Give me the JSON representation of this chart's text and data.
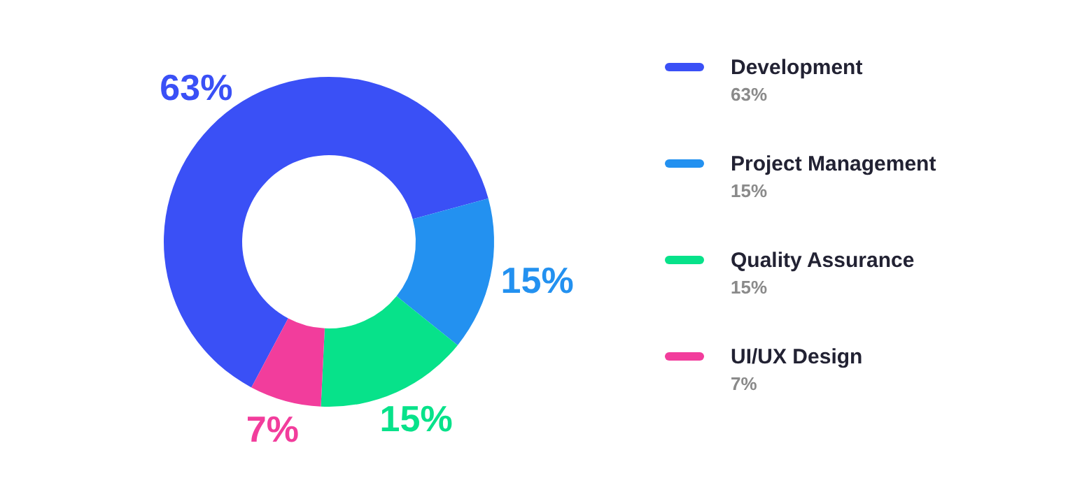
{
  "chart_data": {
    "type": "donut",
    "categories": [
      "Development",
      "Project Management",
      "Quality Assurance",
      "UI/UX Design"
    ],
    "values": [
      63,
      15,
      15,
      7
    ],
    "value_labels": [
      "63%",
      "15%",
      "15%",
      "7%"
    ],
    "colors": [
      "#3a50f6",
      "#2391f0",
      "#07e28a",
      "#f23d9c"
    ],
    "legend": "right"
  }
}
